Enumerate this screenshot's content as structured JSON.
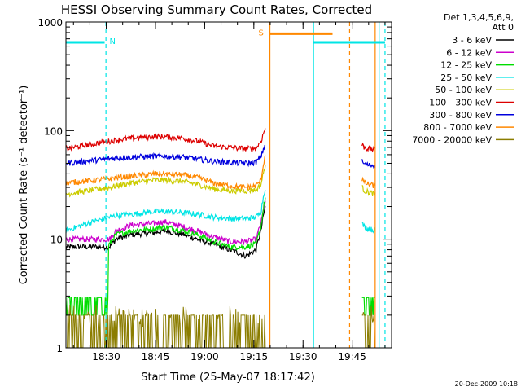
{
  "chart_data": {
    "type": "line",
    "title": "HESSI Observing Summary Count Rates, Corrected",
    "xlabel": "Start Time (25-May-07 18:17:42)",
    "ylabel": "Corrected Count Rate (s⁻¹ detector⁻¹)",
    "yscale": "log",
    "ylim": [
      1,
      1000
    ],
    "xlim_minutes": [
      0,
      99.3
    ],
    "x_ticks": [
      {
        "label": "18:30",
        "min": 12.3
      },
      {
        "label": "18:45",
        "min": 27.3
      },
      {
        "label": "19:00",
        "min": 42.3
      },
      {
        "label": "19:15",
        "min": 57.3
      },
      {
        "label": "19:30",
        "min": 72.3
      },
      {
        "label": "19:45",
        "min": 87.3
      }
    ],
    "y_ticks": [
      {
        "label": "1",
        "value": 1
      },
      {
        "label": "10",
        "value": 10
      },
      {
        "label": "100",
        "value": 100
      },
      {
        "label": "1000",
        "value": 1000
      }
    ],
    "legend_header": [
      "Det 1,3,4,5,6,9,",
      "Att 0"
    ],
    "timestamp": "20-Dec-2009 10:18",
    "data_segments": [
      {
        "start": 0,
        "end": 60.8
      },
      {
        "start": 90.3,
        "end": 94.3
      }
    ],
    "time_steps": [
      0,
      13.3,
      15.3,
      20,
      27,
      30,
      36,
      40,
      45,
      50,
      55,
      58,
      59.5,
      60.8,
      90.3,
      91,
      92.3,
      94.3
    ],
    "series": [
      {
        "name": "3 - 6 keV",
        "color": "#000000",
        "values": [
          null,
          8.5,
          10,
          11,
          11.5,
          12,
          11,
          10,
          9,
          8,
          7,
          8,
          12,
          20,
          null,
          null,
          null,
          null
        ]
      },
      {
        "name": "6 - 12 keV",
        "color": "#cc00cc",
        "values": [
          null,
          10,
          12,
          13.5,
          14,
          14.5,
          13,
          12,
          10.5,
          9.5,
          9.5,
          10,
          14,
          22,
          null,
          null,
          null,
          null
        ]
      },
      {
        "name": "12 - 25 keV",
        "color": "#00dd00",
        "values": [
          2.9,
          9,
          11,
          12,
          12.5,
          13,
          12,
          11,
          9.5,
          8.5,
          8.5,
          9,
          13,
          24,
          2.9,
          2.9,
          2.9,
          2.9
        ]
      },
      {
        "name": "25 - 50 keV",
        "color": "#00e5e5",
        "values": [
          12,
          16,
          16.5,
          17,
          18,
          18,
          17.5,
          17,
          16,
          15.5,
          15.5,
          16,
          18,
          30,
          14,
          13,
          12.5,
          12
        ]
      },
      {
        "name": "50 - 100 keV",
        "color": "#cccc00",
        "values": [
          26,
          30,
          31,
          33,
          35,
          35,
          34,
          32,
          29,
          28,
          28,
          28.5,
          32,
          48,
          30,
          28,
          27,
          26
        ]
      },
      {
        "name": "100 - 300 keV",
        "color": "#dd0000",
        "values": [
          68,
          80,
          82,
          85,
          88,
          88,
          85,
          80,
          72,
          70,
          68,
          69,
          80,
          105,
          74,
          70,
          68,
          67
        ]
      },
      {
        "name": "300 - 800 keV",
        "color": "#0000dd",
        "values": [
          50,
          55,
          56,
          57,
          58,
          58,
          57,
          55,
          52,
          51,
          50,
          51,
          58,
          75,
          52,
          49,
          48,
          48
        ]
      },
      {
        "name": "800 - 7000 keV",
        "color": "#ff8800",
        "values": [
          33,
          36,
          37,
          38,
          40,
          40,
          39,
          37,
          33,
          31,
          30,
          31,
          35,
          60,
          36,
          33,
          32,
          31
        ]
      },
      {
        "name": "7000 - 20000 keV",
        "color": "#8b7d00",
        "values": [
          2,
          1.6,
          2,
          1.8,
          2,
          1.7,
          2,
          1.8,
          2,
          1.9,
          2,
          2,
          2,
          2.4,
          2,
          1.6,
          2,
          2
        ]
      }
    ],
    "attenuator_bars": [
      {
        "label": "N",
        "start": 0,
        "end": 11.8,
        "level": 650,
        "color": "#00e5e5",
        "dashed_edge": 12.2
      },
      {
        "label": "S",
        "start": 62.2,
        "end": 81.3,
        "level": 780,
        "color": "#ff8800",
        "dashed_edge": 81.3
      },
      {
        "label": "",
        "start": 75.5,
        "end": 97.3,
        "level": 650,
        "color": "#00e5e5",
        "dashed_edge": 97.3
      }
    ],
    "vertical_markers": [
      {
        "min": 12.2,
        "color": "#00e5e5",
        "style": "dashed"
      },
      {
        "min": 62.2,
        "color": "#ff8800",
        "style": "solid"
      },
      {
        "min": 75.5,
        "color": "#00e5e5",
        "style": "solid"
      },
      {
        "min": 86.5,
        "color": "#ff8800",
        "style": "dashed"
      },
      {
        "min": 94.3,
        "color": "#ff8800",
        "style": "solid"
      },
      {
        "min": 95.5,
        "color": "#00e5e5",
        "style": "solid"
      },
      {
        "min": 97.3,
        "color": "#00e5e5",
        "style": "dashed"
      }
    ]
  }
}
